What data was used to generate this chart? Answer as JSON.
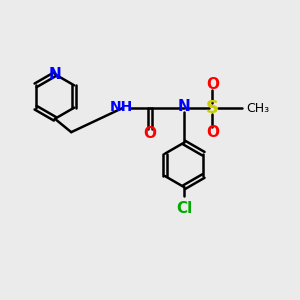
{
  "background_color": "#ebebeb",
  "bond_color": "#000000",
  "atom_colors": {
    "N": "#0000ff",
    "O": "#ff0000",
    "S": "#cccc00",
    "Cl": "#00aa00",
    "H": "#000000",
    "NH": "#0000ff"
  },
  "line_width": 1.8,
  "figsize": [
    3.0,
    3.0
  ],
  "dpi": 100
}
